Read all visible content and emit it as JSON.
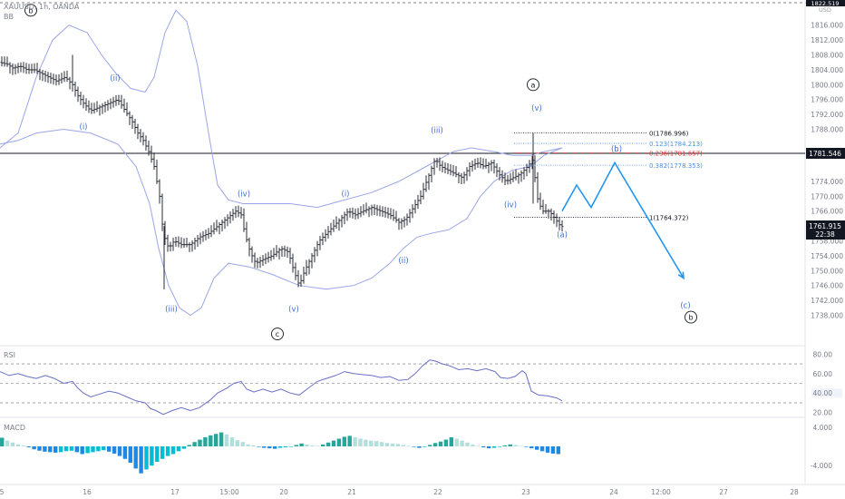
{
  "header": {
    "symbol": "XAUUSD, 1h, OANDA",
    "indicator": "BB"
  },
  "colors": {
    "candle": "#2a2e39",
    "bollinger": "#9aa5e6",
    "wave": "#3f6fd1",
    "projection": "#2196f3",
    "rsi": "#6a6fc4",
    "hline": "#131722",
    "fib_blue": "#4a90e2",
    "fib_red": "#e53935",
    "macd_pos": "#26a69a",
    "macd_pos_light": "#b2dfdb",
    "macd_neg": "#1e88e5",
    "macd_neg_light": "#00bcd4"
  },
  "chart_data": {
    "type": "candlestick",
    "price_axis_ticks": [
      "1816.000",
      "1812.000",
      "1808.000",
      "1804.000",
      "1800.000",
      "1796.000",
      "1792.000",
      "1788.000",
      "1774.000",
      "1770.000",
      "1766.000",
      "1758.000",
      "1754.000",
      "1750.000",
      "1746.000",
      "1742.000",
      "1738.000"
    ],
    "price_ylim": [
      1734,
      1822
    ],
    "x_ticks": [
      "5",
      "16",
      "17",
      "15:00",
      "20",
      "21",
      "22",
      "23",
      "24",
      "12:00",
      "27",
      "28"
    ],
    "axis_tag_top": "1822.519",
    "axis_tag_usd": "USD",
    "horizontal_line": {
      "price": 1781.546,
      "label": "1781.546"
    },
    "last_price": {
      "label": "1761.915",
      "countdown": "22:38"
    },
    "close_path": [
      [
        0,
        1806
      ],
      [
        8,
        1805.5
      ],
      [
        14,
        1804.5
      ],
      [
        22,
        1805
      ],
      [
        30,
        1804
      ],
      [
        38,
        1804
      ],
      [
        46,
        1803
      ],
      [
        54,
        1802
      ],
      [
        62,
        1801
      ],
      [
        72,
        1802
      ],
      [
        80,
        1800
      ],
      [
        86,
        1797
      ],
      [
        92,
        1795
      ],
      [
        100,
        1793
      ],
      [
        110,
        1794
      ],
      [
        120,
        1795
      ],
      [
        130,
        1796
      ],
      [
        138,
        1793
      ],
      [
        146,
        1790
      ],
      [
        152,
        1787
      ],
      [
        158,
        1785
      ],
      [
        164,
        1782
      ],
      [
        170,
        1778
      ],
      [
        176,
        1770
      ],
      [
        180,
        1760
      ],
      [
        186,
        1756
      ],
      [
        192,
        1758
      ],
      [
        200,
        1757
      ],
      [
        210,
        1757
      ],
      [
        220,
        1759
      ],
      [
        230,
        1760
      ],
      [
        240,
        1762
      ],
      [
        250,
        1764
      ],
      [
        260,
        1766
      ],
      [
        266,
        1765
      ],
      [
        270,
        1760
      ],
      [
        276,
        1755
      ],
      [
        282,
        1752
      ],
      [
        290,
        1753
      ],
      [
        300,
        1754
      ],
      [
        310,
        1756
      ],
      [
        318,
        1755
      ],
      [
        324,
        1750
      ],
      [
        330,
        1746
      ],
      [
        336,
        1750
      ],
      [
        344,
        1754
      ],
      [
        352,
        1758
      ],
      [
        360,
        1760
      ],
      [
        368,
        1762
      ],
      [
        376,
        1764
      ],
      [
        384,
        1766
      ],
      [
        392,
        1765
      ],
      [
        400,
        1766
      ],
      [
        410,
        1767
      ],
      [
        420,
        1766
      ],
      [
        430,
        1765
      ],
      [
        440,
        1763
      ],
      [
        448,
        1764
      ],
      [
        456,
        1767
      ],
      [
        464,
        1770
      ],
      [
        472,
        1775
      ],
      [
        480,
        1780
      ],
      [
        486,
        1778
      ],
      [
        494,
        1777
      ],
      [
        502,
        1776
      ],
      [
        510,
        1775
      ],
      [
        518,
        1778
      ],
      [
        526,
        1779
      ],
      [
        534,
        1778
      ],
      [
        542,
        1779
      ],
      [
        550,
        1776
      ],
      [
        558,
        1774
      ],
      [
        566,
        1775
      ],
      [
        574,
        1776
      ],
      [
        582,
        1778
      ],
      [
        588,
        1780
      ],
      [
        592,
        1770
      ],
      [
        598,
        1766
      ],
      [
        606,
        1766
      ],
      [
        612,
        1764
      ],
      [
        618,
        1762
      ],
      [
        620,
        1761.9
      ]
    ],
    "bb_upper": [
      [
        0,
        1783
      ],
      [
        20,
        1787
      ],
      [
        40,
        1802
      ],
      [
        58,
        1812
      ],
      [
        76,
        1816
      ],
      [
        96,
        1814
      ],
      [
        112,
        1808
      ],
      [
        128,
        1803
      ],
      [
        144,
        1799
      ],
      [
        160,
        1798
      ],
      [
        170,
        1802
      ],
      [
        182,
        1814
      ],
      [
        194,
        1820
      ],
      [
        206,
        1817
      ],
      [
        218,
        1805
      ],
      [
        230,
        1787
      ],
      [
        240,
        1773
      ],
      [
        252,
        1769
      ],
      [
        268,
        1768
      ],
      [
        290,
        1768
      ],
      [
        320,
        1768
      ],
      [
        350,
        1767
      ],
      [
        380,
        1769
      ],
      [
        410,
        1771
      ],
      [
        440,
        1774
      ],
      [
        470,
        1778
      ],
      [
        500,
        1782
      ],
      [
        520,
        1783
      ],
      [
        545,
        1782
      ],
      [
        565,
        1781
      ],
      [
        585,
        1781
      ],
      [
        600,
        1782
      ],
      [
        620,
        1783
      ]
    ],
    "bb_lower": [
      [
        0,
        1784
      ],
      [
        20,
        1785
      ],
      [
        40,
        1787
      ],
      [
        70,
        1788
      ],
      [
        100,
        1787
      ],
      [
        130,
        1784
      ],
      [
        150,
        1778
      ],
      [
        165,
        1768
      ],
      [
        175,
        1756
      ],
      [
        186,
        1746
      ],
      [
        198,
        1740
      ],
      [
        210,
        1738
      ],
      [
        222,
        1740
      ],
      [
        236,
        1748
      ],
      [
        252,
        1752
      ],
      [
        275,
        1751
      ],
      [
        300,
        1749
      ],
      [
        330,
        1746
      ],
      [
        360,
        1745
      ],
      [
        390,
        1746
      ],
      [
        410,
        1748
      ],
      [
        430,
        1752
      ],
      [
        445,
        1756
      ],
      [
        460,
        1759
      ],
      [
        475,
        1760
      ],
      [
        495,
        1761
      ],
      [
        515,
        1764
      ],
      [
        530,
        1770
      ],
      [
        545,
        1774
      ],
      [
        565,
        1777
      ],
      [
        585,
        1778
      ],
      [
        600,
        1781
      ],
      [
        620,
        1783
      ]
    ],
    "wave_labels": [
      {
        "text": "(ii)",
        "x": 127,
        "price": 1801
      },
      {
        "text": "(i)",
        "x": 92,
        "price": 1788
      },
      {
        "text": "(iii)",
        "x": 189,
        "price": 1739
      },
      {
        "text": "(iv)",
        "x": 269,
        "price": 1770
      },
      {
        "text": "(v)",
        "x": 324,
        "price": 1739
      },
      {
        "text": "(i)",
        "x": 381,
        "price": 1770
      },
      {
        "text": "(ii)",
        "x": 445,
        "price": 1752
      },
      {
        "text": "(iii)",
        "x": 482,
        "price": 1787
      },
      {
        "text": "(iv)",
        "x": 563,
        "price": 1767
      },
      {
        "text": "(v)",
        "x": 592,
        "price": 1793
      },
      {
        "text": "(a)",
        "x": 620,
        "price": 1759
      },
      {
        "text": "(b)",
        "x": 680,
        "price": 1782
      },
      {
        "text": "(c)",
        "x": 756,
        "price": 1740
      }
    ],
    "circle_labels": [
      {
        "text": "b",
        "x": 34,
        "price": 1820
      },
      {
        "text": "a",
        "x": 588,
        "price": 1800
      },
      {
        "text": "c",
        "x": 306,
        "price": 1733
      },
      {
        "text": "b",
        "x": 762,
        "price": 1737.5
      }
    ],
    "fib_levels": [
      {
        "label": "0(1786.996)",
        "price": 1786.996,
        "color": "#131722"
      },
      {
        "label": "0.123(1784.213)",
        "price": 1784.213,
        "color": "#4a90e2"
      },
      {
        "label": "0.236(1781.657)",
        "price": 1781.657,
        "color": "#e53935"
      },
      {
        "label": "0.382(1778.353)",
        "price": 1778.353,
        "color": "#4a90e2"
      },
      {
        "label": "1(1764.372)",
        "price": 1764.372,
        "color": "#131722"
      }
    ],
    "projection": [
      [
        620,
        1766
      ],
      [
        636,
        1773
      ],
      [
        652,
        1767
      ],
      [
        678,
        1779
      ],
      [
        754,
        1748
      ]
    ],
    "rsi": {
      "label": "RSI",
      "ticks": [
        "80.00",
        "60.00",
        "40.00",
        "20.00"
      ],
      "ylim": [
        15,
        85
      ],
      "levels": [
        70,
        50,
        30
      ],
      "values": [
        [
          0,
          62
        ],
        [
          10,
          58
        ],
        [
          20,
          60
        ],
        [
          30,
          57
        ],
        [
          40,
          55
        ],
        [
          50,
          58
        ],
        [
          60,
          55
        ],
        [
          70,
          50
        ],
        [
          80,
          52
        ],
        [
          86,
          45
        ],
        [
          92,
          40
        ],
        [
          100,
          36
        ],
        [
          110,
          39
        ],
        [
          120,
          42
        ],
        [
          130,
          40
        ],
        [
          140,
          36
        ],
        [
          150,
          32
        ],
        [
          160,
          30
        ],
        [
          166,
          24
        ],
        [
          172,
          22
        ],
        [
          180,
          18
        ],
        [
          190,
          22
        ],
        [
          200,
          25
        ],
        [
          210,
          22
        ],
        [
          220,
          25
        ],
        [
          232,
          33
        ],
        [
          240,
          40
        ],
        [
          250,
          45
        ],
        [
          258,
          50
        ],
        [
          266,
          52
        ],
        [
          272,
          44
        ],
        [
          280,
          41
        ],
        [
          290,
          44
        ],
        [
          300,
          41
        ],
        [
          310,
          44
        ],
        [
          320,
          40
        ],
        [
          330,
          38
        ],
        [
          340,
          45
        ],
        [
          350,
          52
        ],
        [
          360,
          55
        ],
        [
          370,
          58
        ],
        [
          380,
          62
        ],
        [
          390,
          60
        ],
        [
          400,
          59
        ],
        [
          410,
          58
        ],
        [
          420,
          56
        ],
        [
          430,
          57
        ],
        [
          440,
          53
        ],
        [
          450,
          54
        ],
        [
          458,
          60
        ],
        [
          466,
          68
        ],
        [
          474,
          74
        ],
        [
          480,
          73
        ],
        [
          488,
          70
        ],
        [
          496,
          68
        ],
        [
          506,
          64
        ],
        [
          516,
          65
        ],
        [
          526,
          63
        ],
        [
          536,
          65
        ],
        [
          546,
          62
        ],
        [
          552,
          56
        ],
        [
          560,
          55
        ],
        [
          568,
          57
        ],
        [
          576,
          63
        ],
        [
          580,
          60
        ],
        [
          586,
          42
        ],
        [
          594,
          38
        ],
        [
          604,
          37
        ],
        [
          614,
          35
        ],
        [
          620,
          32
        ]
      ]
    },
    "macd": {
      "label": "MACD",
      "ticks": [
        "4.000",
        "-4.000"
      ],
      "ylim": [
        -7,
        7
      ],
      "bars": [
        1.8,
        1.2,
        0.8,
        0.4,
        0.2,
        -0.2,
        -0.6,
        -0.9,
        -1.1,
        -1.2,
        -1.3,
        -1.2,
        -1.0,
        -0.9,
        -1.2,
        -1.6,
        -1.4,
        -1.2,
        -1.0,
        -0.8,
        -1.1,
        -1.5,
        -2.0,
        -2.6,
        -3.4,
        -4.6,
        -5.6,
        -4.8,
        -4.0,
        -3.2,
        -2.6,
        -2.0,
        -1.6,
        -1.0,
        -0.5,
        0.3,
        0.9,
        1.4,
        1.9,
        2.3,
        2.6,
        2.9,
        2.5,
        1.9,
        1.3,
        0.9,
        0.4,
        0.2,
        -0.1,
        -0.3,
        -0.4,
        -0.5,
        -0.3,
        -0.2,
        -0.1,
        0.3,
        0.6,
        0.4,
        0.2,
        0.1,
        0.4,
        0.8,
        1.2,
        1.6,
        2.0,
        2.2,
        1.9,
        1.6,
        1.4,
        1.2,
        1.1,
        0.9,
        0.7,
        0.6,
        0.5,
        0.3,
        0.1,
        -0.1,
        -0.3,
        -0.1,
        0.3,
        0.7,
        1.0,
        1.4,
        1.9,
        1.6,
        1.2,
        0.8,
        0.4,
        0.1,
        -0.2,
        -0.4,
        -0.3,
        -0.1,
        0.2,
        0.4,
        0.3,
        0.1,
        -0.1,
        -0.4,
        -0.7,
        -1.0,
        -1.3,
        -1.5,
        -1.6
      ]
    }
  }
}
